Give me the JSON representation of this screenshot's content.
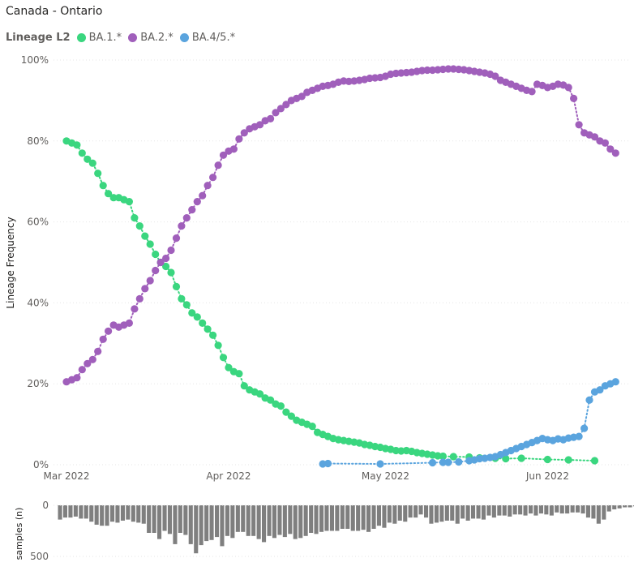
{
  "title": "Canada - Ontario",
  "legend": {
    "title": "Lineage L2",
    "items": [
      {
        "label": "BA.1.*",
        "color": "#3ad67f"
      },
      {
        "label": "BA.2.*",
        "color": "#a05fbb"
      },
      {
        "label": "BA.4/5.*",
        "color": "#5aa4de"
      }
    ]
  },
  "chart_data": [
    {
      "type": "scatter",
      "ylabel": "Lineage Frequency",
      "xlabel": "",
      "x_tick_labels": [
        "Mar 2022",
        "Apr 2022",
        "May 2022",
        "Jun 2022"
      ],
      "y_tick_labels": [
        "0%",
        "20%",
        "40%",
        "60%",
        "80%",
        "100%"
      ],
      "ylim": [
        0,
        100
      ],
      "x_start": "2022-03-01",
      "x_end": "2022-06-14",
      "series": [
        {
          "name": "BA.1.*",
          "color": "#3ad67f",
          "x": [
            "2022-03-01",
            "2022-03-02",
            "2022-03-03",
            "2022-03-04",
            "2022-03-05",
            "2022-03-06",
            "2022-03-07",
            "2022-03-08",
            "2022-03-09",
            "2022-03-10",
            "2022-03-11",
            "2022-03-12",
            "2022-03-13",
            "2022-03-14",
            "2022-03-15",
            "2022-03-16",
            "2022-03-17",
            "2022-03-18",
            "2022-03-19",
            "2022-03-20",
            "2022-03-21",
            "2022-03-22",
            "2022-03-23",
            "2022-03-24",
            "2022-03-25",
            "2022-03-26",
            "2022-03-27",
            "2022-03-28",
            "2022-03-29",
            "2022-03-30",
            "2022-03-31",
            "2022-04-01",
            "2022-04-02",
            "2022-04-03",
            "2022-04-04",
            "2022-04-05",
            "2022-04-06",
            "2022-04-07",
            "2022-04-08",
            "2022-04-09",
            "2022-04-10",
            "2022-04-11",
            "2022-04-12",
            "2022-04-13",
            "2022-04-14",
            "2022-04-15",
            "2022-04-16",
            "2022-04-17",
            "2022-04-18",
            "2022-04-19",
            "2022-04-20",
            "2022-04-21",
            "2022-04-22",
            "2022-04-23",
            "2022-04-24",
            "2022-04-25",
            "2022-04-26",
            "2022-04-27",
            "2022-04-28",
            "2022-04-29",
            "2022-04-30",
            "2022-05-01",
            "2022-05-02",
            "2022-05-03",
            "2022-05-04",
            "2022-05-05",
            "2022-05-06",
            "2022-05-07",
            "2022-05-08",
            "2022-05-09",
            "2022-05-10",
            "2022-05-11",
            "2022-05-12",
            "2022-05-14",
            "2022-05-17",
            "2022-05-19",
            "2022-05-22",
            "2022-05-24",
            "2022-05-27",
            "2022-06-01",
            "2022-06-05",
            "2022-06-10"
          ],
          "y": [
            80,
            79.5,
            79,
            77,
            75.5,
            74.5,
            72,
            69,
            67,
            66,
            66,
            65.5,
            65,
            61,
            59,
            56.5,
            54.5,
            52,
            50,
            49,
            47.5,
            44,
            41,
            39.5,
            37.5,
            36.5,
            35,
            33.5,
            32,
            29.5,
            26.5,
            24,
            23,
            22.5,
            19.5,
            18.5,
            18,
            17.5,
            16.5,
            16,
            15,
            14.5,
            13,
            12,
            11,
            10.5,
            10,
            9.5,
            8,
            7.5,
            7,
            6.5,
            6.2,
            6,
            5.8,
            5.6,
            5.4,
            5,
            4.8,
            4.5,
            4.3,
            4,
            3.8,
            3.5,
            3.4,
            3.5,
            3.3,
            3,
            2.8,
            2.6,
            2.4,
            2.2,
            2.1,
            2,
            1.9,
            1.7,
            1.6,
            1.5,
            1.6,
            1.3,
            1.2,
            1
          ]
        },
        {
          "name": "BA.2.*",
          "color": "#a05fbb",
          "x": [
            "2022-03-01",
            "2022-03-02",
            "2022-03-03",
            "2022-03-04",
            "2022-03-05",
            "2022-03-06",
            "2022-03-07",
            "2022-03-08",
            "2022-03-09",
            "2022-03-10",
            "2022-03-11",
            "2022-03-12",
            "2022-03-13",
            "2022-03-14",
            "2022-03-15",
            "2022-03-16",
            "2022-03-17",
            "2022-03-18",
            "2022-03-19",
            "2022-03-20",
            "2022-03-21",
            "2022-03-22",
            "2022-03-23",
            "2022-03-24",
            "2022-03-25",
            "2022-03-26",
            "2022-03-27",
            "2022-03-28",
            "2022-03-29",
            "2022-03-30",
            "2022-03-31",
            "2022-04-01",
            "2022-04-02",
            "2022-04-03",
            "2022-04-04",
            "2022-04-05",
            "2022-04-06",
            "2022-04-07",
            "2022-04-08",
            "2022-04-09",
            "2022-04-10",
            "2022-04-11",
            "2022-04-12",
            "2022-04-13",
            "2022-04-14",
            "2022-04-15",
            "2022-04-16",
            "2022-04-17",
            "2022-04-18",
            "2022-04-19",
            "2022-04-20",
            "2022-04-21",
            "2022-04-22",
            "2022-04-23",
            "2022-04-24",
            "2022-04-25",
            "2022-04-26",
            "2022-04-27",
            "2022-04-28",
            "2022-04-29",
            "2022-04-30",
            "2022-05-01",
            "2022-05-02",
            "2022-05-03",
            "2022-05-04",
            "2022-05-05",
            "2022-05-06",
            "2022-05-07",
            "2022-05-08",
            "2022-05-09",
            "2022-05-10",
            "2022-05-11",
            "2022-05-12",
            "2022-05-13",
            "2022-05-14",
            "2022-05-15",
            "2022-05-16",
            "2022-05-17",
            "2022-05-18",
            "2022-05-19",
            "2022-05-20",
            "2022-05-21",
            "2022-05-22",
            "2022-05-23",
            "2022-05-24",
            "2022-05-25",
            "2022-05-26",
            "2022-05-27",
            "2022-05-28",
            "2022-05-29",
            "2022-05-30",
            "2022-05-31",
            "2022-06-01",
            "2022-06-02",
            "2022-06-03",
            "2022-06-04",
            "2022-06-05",
            "2022-06-06",
            "2022-06-07",
            "2022-06-08",
            "2022-06-09",
            "2022-06-10",
            "2022-06-11",
            "2022-06-12",
            "2022-06-13",
            "2022-06-14"
          ],
          "y": [
            20.5,
            21,
            21.5,
            23.5,
            25,
            26,
            28,
            31,
            33,
            34.5,
            34,
            34.5,
            35,
            38.5,
            41,
            43.5,
            45.5,
            48,
            50,
            51,
            53,
            56,
            59,
            61,
            63,
            65,
            66.5,
            69,
            71,
            74,
            76.5,
            77.5,
            78,
            80.5,
            82,
            83,
            83.5,
            84,
            85,
            85.5,
            87,
            88,
            89,
            90,
            90.5,
            91,
            92,
            92.5,
            93,
            93.5,
            93.7,
            94,
            94.5,
            94.8,
            94.7,
            94.8,
            95,
            95.2,
            95.5,
            95.6,
            95.7,
            96,
            96.5,
            96.7,
            96.8,
            96.9,
            97,
            97.2,
            97.4,
            97.5,
            97.5,
            97.6,
            97.7,
            97.8,
            97.8,
            97.7,
            97.6,
            97.4,
            97.2,
            97,
            96.8,
            96.5,
            96,
            95,
            94.5,
            94,
            93.5,
            93,
            92.5,
            92.2,
            94,
            93.7,
            93.2,
            93.5,
            94,
            93.8,
            93.2,
            90.5,
            84,
            82,
            81.5,
            81,
            80,
            79.5,
            78,
            77
          ]
        },
        {
          "name": "BA.4/5.*",
          "color": "#5aa4de",
          "x": [
            "2022-04-19",
            "2022-04-20",
            "2022-04-30",
            "2022-05-10",
            "2022-05-12",
            "2022-05-13",
            "2022-05-15",
            "2022-05-17",
            "2022-05-18",
            "2022-05-19",
            "2022-05-20",
            "2022-05-21",
            "2022-05-22",
            "2022-05-23",
            "2022-05-24",
            "2022-05-25",
            "2022-05-26",
            "2022-05-27",
            "2022-05-28",
            "2022-05-29",
            "2022-05-30",
            "2022-05-31",
            "2022-06-01",
            "2022-06-02",
            "2022-06-03",
            "2022-06-04",
            "2022-06-05",
            "2022-06-06",
            "2022-06-07",
            "2022-06-08",
            "2022-06-09",
            "2022-06-10",
            "2022-06-11",
            "2022-06-12",
            "2022-06-13",
            "2022-06-14"
          ],
          "y": [
            0.2,
            0.3,
            0.2,
            0.5,
            0.6,
            0.6,
            0.7,
            1,
            1.2,
            1.5,
            1.6,
            1.8,
            2,
            2.5,
            3,
            3.5,
            4,
            4.5,
            5,
            5.5,
            6,
            6.5,
            6.2,
            6,
            6.4,
            6.2,
            6.6,
            6.8,
            7,
            9,
            16,
            18,
            18.5,
            19.5,
            20,
            20.5
          ]
        }
      ]
    },
    {
      "type": "bar",
      "ylabel": "samples (n)",
      "y_tick_labels": [
        "0",
        "500"
      ],
      "ylim": [
        0,
        500
      ],
      "x_start": "2022-03-01",
      "values": [
        140,
        120,
        120,
        110,
        130,
        130,
        160,
        190,
        200,
        200,
        160,
        170,
        150,
        140,
        160,
        170,
        180,
        270,
        270,
        330,
        250,
        280,
        380,
        270,
        290,
        380,
        470,
        390,
        350,
        340,
        310,
        400,
        300,
        320,
        260,
        260,
        300,
        300,
        330,
        360,
        300,
        320,
        290,
        310,
        280,
        330,
        320,
        300,
        270,
        280,
        260,
        250,
        250,
        250,
        230,
        230,
        250,
        250,
        240,
        260,
        230,
        200,
        220,
        170,
        180,
        150,
        160,
        120,
        120,
        90,
        120,
        180,
        170,
        160,
        150,
        150,
        180,
        130,
        150,
        130,
        130,
        140,
        100,
        120,
        100,
        100,
        110,
        90,
        90,
        100,
        80,
        100,
        80,
        90,
        100,
        70,
        80,
        80,
        70,
        70,
        80,
        120,
        130,
        180,
        140,
        60,
        40,
        30,
        20,
        20,
        10,
        10
      ]
    }
  ]
}
